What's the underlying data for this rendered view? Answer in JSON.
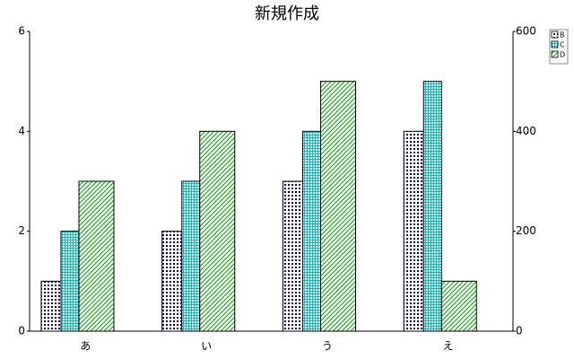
{
  "chart_data": {
    "type": "bar",
    "title": "新規作成",
    "categories": [
      "あ",
      "い",
      "う",
      "え"
    ],
    "series": [
      {
        "name": "B",
        "color": "#000080",
        "pattern": "dots",
        "values": [
          1,
          2,
          3,
          4
        ]
      },
      {
        "name": "C",
        "color": "#00c0c0",
        "pattern": "grid",
        "values": [
          2,
          3,
          4,
          5
        ]
      },
      {
        "name": "D",
        "color": "#00a000",
        "pattern": "hatch",
        "axis": "y2",
        "values": [
          300,
          400,
          500,
          100
        ]
      }
    ],
    "ylim": [
      0,
      6
    ],
    "yticks": [
      0,
      2,
      4,
      6
    ],
    "y2lim": [
      0,
      600
    ],
    "y2ticks": [
      0,
      200,
      400,
      600
    ],
    "grid": false,
    "legend": "top-right"
  }
}
